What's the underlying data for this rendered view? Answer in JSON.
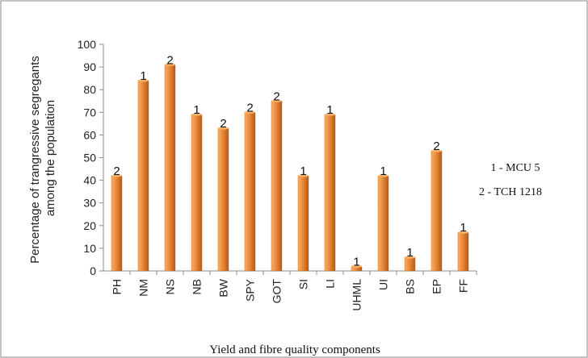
{
  "chart_data": {
    "type": "bar",
    "xlabel": "Yield and fibre quality components",
    "ylabel_lines": [
      "Percentage of trangressive segregants",
      "among the population"
    ],
    "ylim": [
      0,
      100
    ],
    "yticks": [
      0,
      10,
      20,
      30,
      40,
      50,
      60,
      70,
      80,
      90,
      100
    ],
    "grid": false,
    "categories": [
      "PH",
      "NM",
      "NS",
      "NB",
      "BW",
      "SPY",
      "GOT",
      "SI",
      "LI",
      "UHML",
      "UI",
      "BS",
      "EP",
      "FF"
    ],
    "values": [
      42,
      84,
      91,
      69,
      63,
      70,
      75,
      42,
      69,
      2,
      42,
      6,
      53,
      17
    ],
    "data_labels": [
      "2",
      "1",
      "2",
      "1",
      "2",
      "2",
      "2",
      "1",
      "1",
      "1",
      "1",
      "1",
      "2",
      "1"
    ],
    "legend": {
      "placement": "right",
      "entries": [
        "1 - MCU 5",
        "2 - TCH 1218"
      ]
    },
    "colors": {
      "bar_light": "#f6b06a",
      "bar_mid": "#e8893a",
      "bar_dark": "#b85a12"
    }
  }
}
